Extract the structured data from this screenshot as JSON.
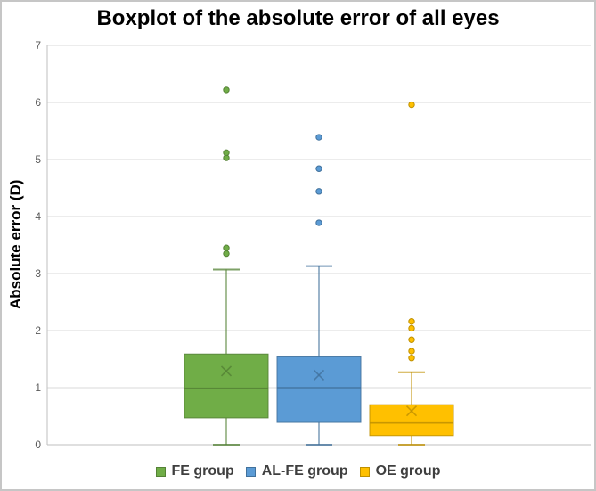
{
  "figure": {
    "background": "#ffffff",
    "border_color": "#c6c6c6"
  },
  "chart_data": {
    "type": "boxplot",
    "title": "Boxplot of the absolute error of all eyes",
    "ylabel": "Absolute error (D)",
    "xlabel": "",
    "ylim": [
      0,
      7
    ],
    "y_ticks": [
      0,
      1,
      2,
      3,
      4,
      5,
      6,
      7
    ],
    "grid": "horizontal",
    "legend_position": "bottom",
    "series": [
      {
        "name": "FE group",
        "fill": "#70AD47",
        "stroke": "#548235",
        "whisker_low": 0,
        "q1": 0.47,
        "median": 0.99,
        "q3": 1.59,
        "whisker_high": 3.07,
        "mean": 1.29,
        "outliers": [
          3.35,
          3.45,
          5.03,
          5.12,
          6.22
        ]
      },
      {
        "name": "AL-FE group",
        "fill": "#5B9BD5",
        "stroke": "#41719C",
        "whisker_low": 0,
        "q1": 0.39,
        "median": 1.0,
        "q3": 1.54,
        "whisker_high": 3.13,
        "mean": 1.22,
        "outliers": [
          3.89,
          4.44,
          4.84,
          5.39
        ]
      },
      {
        "name": "OE group",
        "fill": "#FFC000",
        "stroke": "#BF9000",
        "whisker_low": 0,
        "q1": 0.16,
        "median": 0.38,
        "q3": 0.7,
        "whisker_high": 1.27,
        "mean": 0.59,
        "outliers": [
          1.52,
          1.64,
          1.84,
          2.04,
          2.16,
          5.96
        ]
      }
    ]
  },
  "colors": {
    "grid": "#d9d9d9",
    "axis": "#bfbfbf",
    "tick_text": "#595959",
    "title_text": "#000000",
    "legend_text": "#3f3f3f"
  }
}
